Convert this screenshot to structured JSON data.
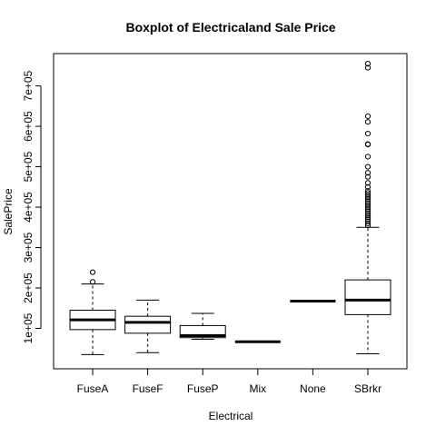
{
  "chart_data": {
    "type": "box",
    "title": "Boxplot of Electricaland Sale Price",
    "xlabel": "Electrical",
    "ylabel": "SalePrice",
    "ylim": [
      0,
      780000
    ],
    "y_ticks": [
      100000,
      200000,
      300000,
      400000,
      500000,
      600000,
      700000
    ],
    "y_tick_labels": [
      "1e+05",
      "2e+05",
      "3e+05",
      "4e+05",
      "5e+05",
      "6e+05",
      "7e+05"
    ],
    "grid": false,
    "categories": [
      "FuseA",
      "FuseF",
      "FuseP",
      "Mix",
      "None",
      "SBrkr"
    ],
    "boxes": [
      {
        "category": "FuseA",
        "whisker_low": 35000,
        "q1": 97000,
        "median": 121000,
        "q3": 145000,
        "whisker_high": 210000,
        "outliers": [
          215000,
          239000
        ]
      },
      {
        "category": "FuseF",
        "whisker_low": 40000,
        "q1": 88000,
        "median": 115000,
        "q3": 130000,
        "whisker_high": 170000,
        "outliers": []
      },
      {
        "category": "FuseP",
        "whisker_low": 73000,
        "q1": 77000,
        "median": 82000,
        "q3": 107000,
        "whisker_high": 137000,
        "outliers": []
      },
      {
        "category": "Mix",
        "whisker_low": 67000,
        "q1": 67000,
        "median": 67000,
        "q3": 67000,
        "whisker_high": 67000,
        "outliers": []
      },
      {
        "category": "None",
        "whisker_low": 167500,
        "q1": 167500,
        "median": 167500,
        "q3": 167500,
        "whisker_high": 167500,
        "outliers": []
      },
      {
        "category": "SBrkr",
        "whisker_low": 37000,
        "q1": 134000,
        "median": 170000,
        "q3": 220000,
        "whisker_high": 350000,
        "outliers": [
          355000,
          360000,
          365000,
          370000,
          375000,
          380000,
          385000,
          390000,
          395000,
          400000,
          405000,
          410000,
          415000,
          420000,
          425000,
          430000,
          435000,
          440000,
          450000,
          460000,
          475000,
          485000,
          500000,
          525000,
          555000,
          556000,
          582000,
          611000,
          625000,
          745000,
          755000
        ]
      }
    ]
  }
}
